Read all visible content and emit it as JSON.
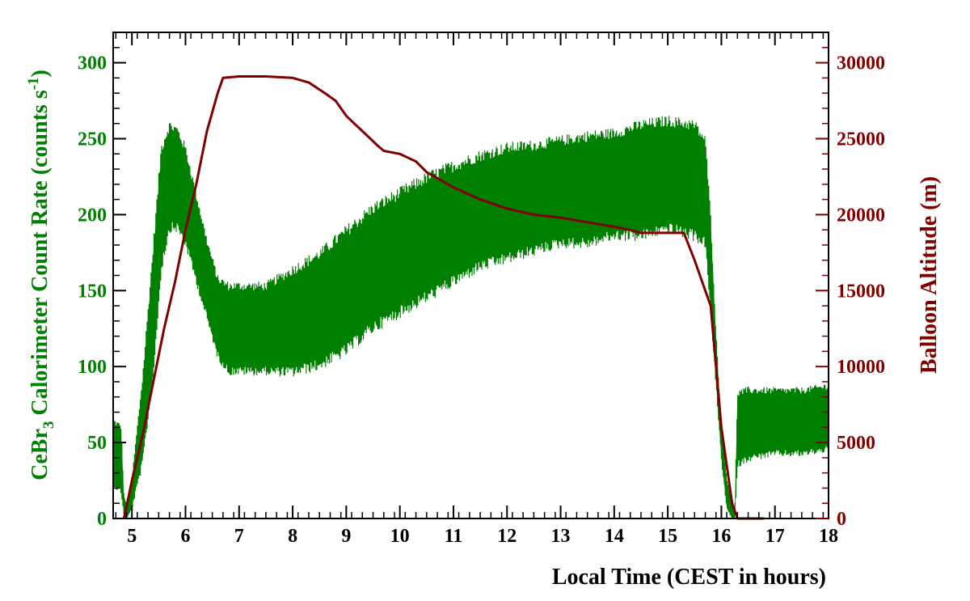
{
  "chart_data": {
    "type": "line",
    "title": "",
    "xlabel": "Local Time (CEST in hours)",
    "ylabel_left": {
      "prefix": "CeBr",
      "sub": "3",
      "middle": " Calorimeter Count Rate (counts s",
      "sup": "-1",
      "suffix": ")"
    },
    "ylabel_right": "Balloon Altitude (m)",
    "xlim": [
      4.65,
      18.0
    ],
    "ylim_left": [
      0,
      320
    ],
    "ylim_right": [
      0,
      32000
    ],
    "x_ticks": [
      "5",
      "6",
      "7",
      "8",
      "9",
      "10",
      "11",
      "12",
      "13",
      "14",
      "15",
      "16",
      "17",
      "18"
    ],
    "y_left_ticks": [
      "0",
      "50",
      "100",
      "150",
      "200",
      "250",
      "300"
    ],
    "y_right_ticks": [
      "0",
      "5000",
      "10000",
      "15000",
      "20000",
      "25000",
      "30000"
    ],
    "series": [
      {
        "axis": "left",
        "color": "#008000",
        "style": "band",
        "x": [
          4.65,
          4.8,
          4.85,
          4.9,
          5.0,
          5.2,
          5.4,
          5.55,
          5.7,
          5.85,
          6.0,
          6.2,
          6.4,
          6.6,
          6.8,
          7.0,
          7.5,
          8.0,
          8.5,
          9.0,
          9.5,
          10.0,
          10.5,
          11.0,
          11.5,
          12.0,
          12.5,
          13.0,
          13.5,
          14.0,
          14.5,
          15.0,
          15.5,
          15.7,
          15.8,
          15.9,
          16.0,
          16.1,
          16.2,
          16.25,
          16.3,
          16.5,
          17.0,
          17.5,
          18.0
        ],
        "y_low": [
          25,
          20,
          3,
          0,
          8,
          40,
          100,
          170,
          195,
          195,
          185,
          160,
          135,
          110,
          100,
          100,
          100,
          100,
          105,
          115,
          130,
          140,
          150,
          160,
          170,
          175,
          180,
          185,
          185,
          190,
          190,
          195,
          190,
          185,
          140,
          90,
          40,
          8,
          0,
          0,
          38,
          42,
          45,
          45,
          48
        ],
        "y_high": [
          62,
          58,
          15,
          8,
          25,
          90,
          175,
          240,
          255,
          252,
          240,
          210,
          180,
          155,
          150,
          150,
          150,
          160,
          170,
          185,
          200,
          210,
          220,
          228,
          235,
          240,
          242,
          245,
          248,
          250,
          255,
          258,
          255,
          245,
          195,
          120,
          60,
          25,
          10,
          5,
          80,
          82,
          82,
          82,
          85
        ]
      },
      {
        "axis": "right",
        "color": "#800000",
        "style": "line",
        "x": [
          4.85,
          4.9,
          5.0,
          5.2,
          5.4,
          5.6,
          5.8,
          6.0,
          6.2,
          6.4,
          6.6,
          6.7,
          7.0,
          7.5,
          8.0,
          8.3,
          8.6,
          8.8,
          9.0,
          9.3,
          9.6,
          9.7,
          10.0,
          10.3,
          10.5,
          11.0,
          11.5,
          12.0,
          12.5,
          13.0,
          13.5,
          14.0,
          14.3,
          14.5,
          15.0,
          15.3,
          15.5,
          15.7,
          15.8,
          16.0,
          16.2,
          16.3,
          16.5,
          16.8
        ],
        "y": [
          0,
          800,
          2500,
          5500,
          9000,
          12500,
          15500,
          19000,
          22000,
          25500,
          28000,
          29000,
          29100,
          29100,
          29000,
          28700,
          28000,
          27500,
          26500,
          25500,
          24500,
          24200,
          24000,
          23500,
          22800,
          21800,
          21000,
          20400,
          20000,
          19800,
          19500,
          19200,
          19000,
          18800,
          18800,
          18800,
          17000,
          15000,
          14000,
          6000,
          1000,
          0,
          0,
          0
        ]
      }
    ]
  }
}
